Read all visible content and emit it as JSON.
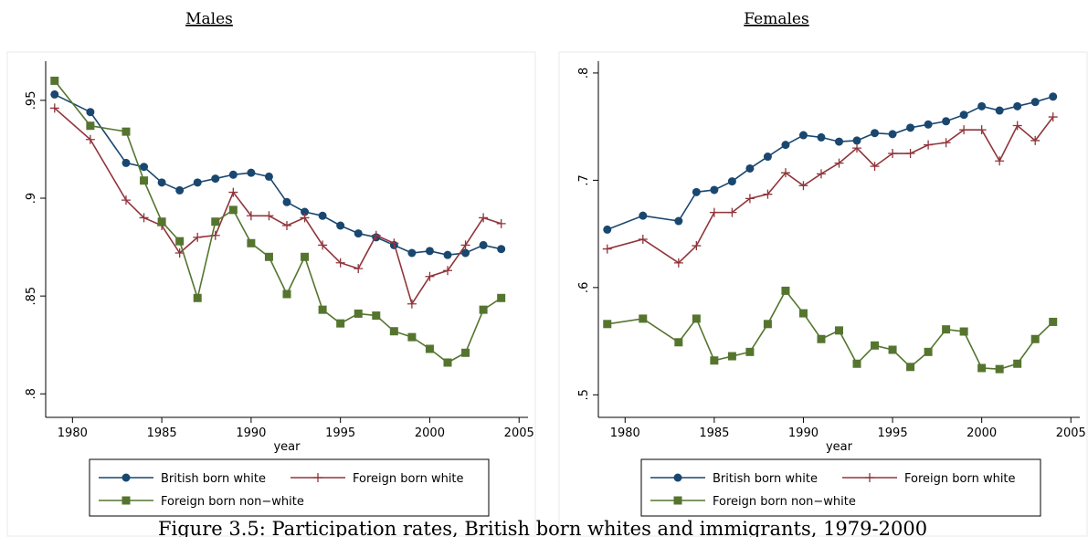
{
  "chart_data": [
    {
      "type": "line",
      "title": "Males",
      "xlabel": "year",
      "legend": "bottom",
      "x": [
        1979,
        1981,
        1983,
        1984,
        1985,
        1986,
        1987,
        1988,
        1989,
        1990,
        1991,
        1992,
        1993,
        1994,
        1995,
        1996,
        1997,
        1998,
        1999,
        2000,
        2001,
        2002,
        2003,
        2004
      ],
      "xlim": [
        1978.5,
        2005.5
      ],
      "xticks": [
        1980,
        1985,
        1990,
        1995,
        2000,
        2005
      ],
      "ylim": [
        0.788,
        0.97
      ],
      "yticks": [
        {
          "value": 0.8,
          "label": ".8"
        },
        {
          "value": 0.85,
          "label": ".85"
        },
        {
          "value": 0.9,
          "label": ".9"
        },
        {
          "value": 0.95,
          "label": ".95"
        }
      ],
      "series": [
        {
          "name": "British born white",
          "color": "#1a476f",
          "marker": "circle",
          "values": [
            0.953,
            0.944,
            0.918,
            0.916,
            0.908,
            0.904,
            0.908,
            0.91,
            0.912,
            0.913,
            0.911,
            0.898,
            0.893,
            0.891,
            0.886,
            0.882,
            0.88,
            0.876,
            0.872,
            0.873,
            0.871,
            0.872,
            0.876,
            0.874
          ]
        },
        {
          "name": "Foreign born white",
          "color": "#90353b",
          "marker": "plus",
          "values": [
            0.946,
            0.93,
            0.899,
            0.89,
            0.886,
            0.872,
            0.88,
            0.881,
            0.903,
            0.891,
            0.891,
            0.886,
            0.89,
            0.876,
            0.867,
            0.864,
            0.881,
            0.877,
            0.846,
            0.86,
            0.863,
            0.876,
            0.89,
            0.887
          ]
        },
        {
          "name": "Foreign born non−white",
          "color": "#55752f",
          "marker": "square",
          "values": [
            0.96,
            0.937,
            0.934,
            0.909,
            0.888,
            0.878,
            0.849,
            0.888,
            0.894,
            0.877,
            0.87,
            0.851,
            0.87,
            0.843,
            0.836,
            0.841,
            0.84,
            0.832,
            0.829,
            0.823,
            0.816,
            0.821,
            0.843,
            0.849
          ]
        }
      ]
    },
    {
      "type": "line",
      "title": "Females",
      "xlabel": "year",
      "legend": "bottom",
      "x": [
        1979,
        1981,
        1983,
        1984,
        1985,
        1986,
        1987,
        1988,
        1989,
        1990,
        1991,
        1992,
        1993,
        1994,
        1995,
        1996,
        1997,
        1998,
        1999,
        2000,
        2001,
        2002,
        2003,
        2004
      ],
      "xlim": [
        1978.5,
        2005.5
      ],
      "xticks": [
        1980,
        1985,
        1990,
        1995,
        2000,
        2005
      ],
      "ylim": [
        0.479,
        0.811
      ],
      "yticks": [
        {
          "value": 0.5,
          "label": ".5"
        },
        {
          "value": 0.6,
          "label": ".6"
        },
        {
          "value": 0.7,
          "label": ".7"
        },
        {
          "value": 0.8,
          "label": ".8"
        }
      ],
      "series": [
        {
          "name": "British born white",
          "color": "#1a476f",
          "marker": "circle",
          "values": [
            0.654,
            0.667,
            0.662,
            0.689,
            0.691,
            0.699,
            0.711,
            0.722,
            0.733,
            0.742,
            0.74,
            0.736,
            0.737,
            0.744,
            0.743,
            0.749,
            0.752,
            0.755,
            0.761,
            0.769,
            0.765,
            0.769,
            0.773,
            0.778
          ]
        },
        {
          "name": "Foreign born white",
          "color": "#90353b",
          "marker": "plus",
          "values": [
            0.636,
            0.645,
            0.623,
            0.639,
            0.67,
            0.67,
            0.683,
            0.687,
            0.707,
            0.695,
            0.706,
            0.716,
            0.73,
            0.713,
            0.725,
            0.725,
            0.733,
            0.735,
            0.747,
            0.747,
            0.718,
            0.751,
            0.737,
            0.759
          ]
        },
        {
          "name": "Foreign born non−white",
          "color": "#55752f",
          "marker": "square",
          "values": [
            0.566,
            0.571,
            0.549,
            0.571,
            0.532,
            0.536,
            0.54,
            0.566,
            0.597,
            0.576,
            0.552,
            0.56,
            0.529,
            0.546,
            0.542,
            0.526,
            0.54,
            0.561,
            0.559,
            0.525,
            0.524,
            0.529,
            0.552,
            0.568
          ]
        }
      ]
    }
  ],
  "caption": "Figure 3.5: Participation rates, British born whites and immigrants, 1979-2000"
}
